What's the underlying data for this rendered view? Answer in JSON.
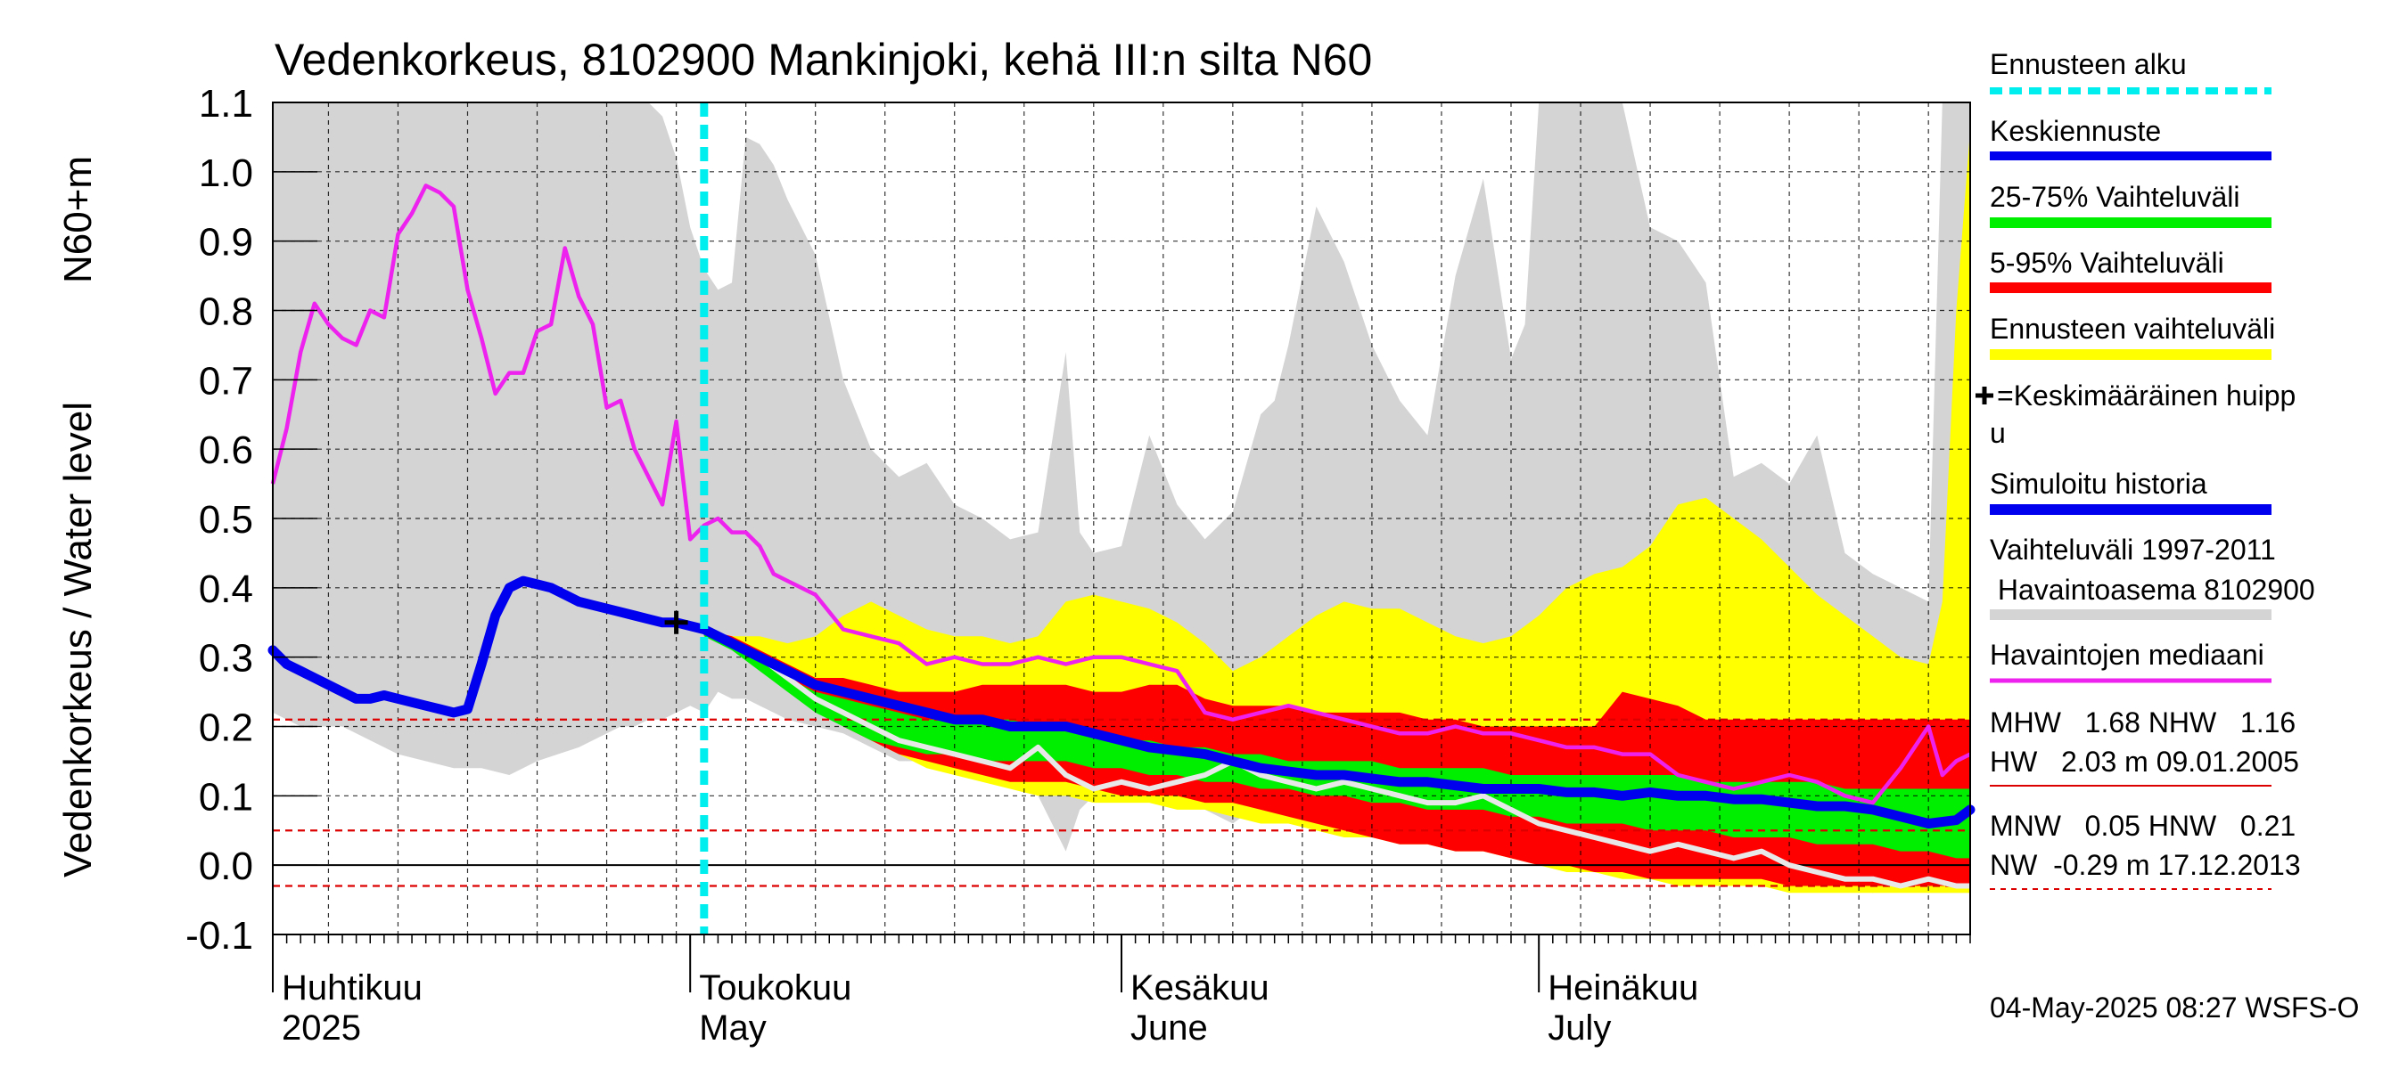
{
  "chart_data": {
    "type": "area",
    "title": "Vedenkorkeus, 8102900 Mankinjoki, kehä III:n silta N60",
    "ylabel_top": "N60+m",
    "ylabel": "Vedenkorkeus / Water level",
    "ylim": [
      -0.1,
      1.1
    ],
    "y_ticks": [
      "1.1",
      "1.0",
      "0.9",
      "0.8",
      "0.7",
      "0.6",
      "0.5",
      "0.4",
      "0.3",
      "0.2",
      "0.1",
      "0.0",
      "-0.1"
    ],
    "y_tick_values": [
      1.1,
      1.0,
      0.9,
      0.8,
      0.7,
      0.6,
      0.5,
      0.4,
      0.3,
      0.2,
      0.1,
      0.0,
      -0.1
    ],
    "x_range_days": [
      1,
      123
    ],
    "months": [
      {
        "fi": "Huhtikuu",
        "en": "2025",
        "day": 1
      },
      {
        "fi": "Toukokuu",
        "en": "May",
        "day": 31
      },
      {
        "fi": "Kesäkuu",
        "en": "June",
        "day": 62
      },
      {
        "fi": "Heinäkuu",
        "en": "July",
        "day": 92
      }
    ],
    "forecast_start_day": 32,
    "mean_peak": {
      "day": 30,
      "value": 0.35
    },
    "ref_lines": [
      0.21,
      0.05,
      -0.03
    ],
    "grey_range": {
      "x": [
        1,
        3,
        6,
        10,
        14,
        16,
        18,
        20,
        23,
        26,
        27,
        28,
        29,
        30,
        31,
        32,
        33,
        34,
        35,
        36,
        37,
        38,
        40,
        42,
        44,
        46,
        48,
        50,
        52,
        54,
        56,
        58,
        59,
        60,
        62,
        64,
        66,
        68,
        70,
        72,
        73,
        74,
        76,
        78,
        80,
        82,
        84,
        86,
        88,
        90,
        91,
        92,
        93,
        94,
        96,
        98,
        100,
        102,
        104,
        106,
        108,
        110,
        112,
        114,
        116,
        118,
        120,
        121,
        122,
        123
      ],
      "upper": [
        1.1,
        1.1,
        1.1,
        1.1,
        1.1,
        1.1,
        1.1,
        1.1,
        1.1,
        1.1,
        1.1,
        1.1,
        1.08,
        1.02,
        0.92,
        0.86,
        0.83,
        0.84,
        1.05,
        1.04,
        1.01,
        0.96,
        0.88,
        0.7,
        0.6,
        0.56,
        0.58,
        0.52,
        0.5,
        0.47,
        0.48,
        0.74,
        0.48,
        0.45,
        0.46,
        0.62,
        0.52,
        0.47,
        0.51,
        0.65,
        0.67,
        0.75,
        0.95,
        0.87,
        0.75,
        0.67,
        0.62,
        0.85,
        0.99,
        0.73,
        0.78,
        1.1,
        1.1,
        1.1,
        1.1,
        1.1,
        0.92,
        0.9,
        0.84,
        0.56,
        0.58,
        0.55,
        0.62,
        0.45,
        0.42,
        0.4,
        0.38,
        1.1,
        1.1,
        1.1
      ],
      "lower": [
        0.22,
        0.2,
        0.2,
        0.16,
        0.14,
        0.14,
        0.13,
        0.15,
        0.17,
        0.2,
        0.2,
        0.21,
        0.21,
        0.22,
        0.23,
        0.22,
        0.25,
        0.24,
        0.24,
        0.23,
        0.22,
        0.21,
        0.2,
        0.19,
        0.17,
        0.15,
        0.15,
        0.14,
        0.13,
        0.12,
        0.1,
        0.02,
        0.08,
        0.1,
        0.12,
        0.11,
        0.1,
        0.08,
        0.06,
        0.09,
        0.08,
        0.07,
        0.05,
        0.06,
        0.07,
        0.05,
        0.06,
        0.04,
        0.03,
        0.02,
        0.03,
        0.02,
        0.02,
        0.01,
        0.0,
        0.0,
        -0.01,
        -0.01,
        -0.02,
        -0.02,
        -0.02,
        -0.03,
        -0.03,
        -0.03,
        -0.04,
        -0.03,
        -0.04,
        -0.04,
        -0.04,
        -0.04
      ]
    },
    "forecast_range": {
      "x": [
        32,
        34,
        36,
        38,
        40,
        42,
        44,
        46,
        48,
        50,
        52,
        54,
        56,
        58,
        60,
        62,
        64,
        66,
        68,
        70,
        72,
        74,
        76,
        78,
        80,
        82,
        84,
        86,
        88,
        90,
        92,
        94,
        96,
        98,
        100,
        102,
        104,
        106,
        108,
        110,
        112,
        114,
        116,
        118,
        120,
        121,
        122,
        123
      ],
      "upper": [
        0.33,
        0.33,
        0.33,
        0.32,
        0.33,
        0.36,
        0.38,
        0.36,
        0.34,
        0.33,
        0.33,
        0.32,
        0.33,
        0.38,
        0.39,
        0.38,
        0.37,
        0.35,
        0.32,
        0.28,
        0.3,
        0.33,
        0.36,
        0.38,
        0.37,
        0.37,
        0.35,
        0.33,
        0.32,
        0.33,
        0.36,
        0.4,
        0.42,
        0.43,
        0.46,
        0.52,
        0.53,
        0.5,
        0.47,
        0.43,
        0.39,
        0.36,
        0.33,
        0.3,
        0.29,
        0.38,
        0.8,
        1.06
      ],
      "lower": [
        0.33,
        0.32,
        0.3,
        0.27,
        0.24,
        0.21,
        0.18,
        0.16,
        0.14,
        0.13,
        0.12,
        0.11,
        0.1,
        0.1,
        0.09,
        0.09,
        0.09,
        0.08,
        0.08,
        0.07,
        0.06,
        0.06,
        0.05,
        0.04,
        0.04,
        0.03,
        0.03,
        0.02,
        0.02,
        0.01,
        0.0,
        -0.01,
        -0.01,
        -0.02,
        -0.02,
        -0.03,
        -0.03,
        -0.03,
        -0.03,
        -0.04,
        -0.04,
        -0.04,
        -0.04,
        -0.04,
        -0.04,
        -0.04,
        -0.04,
        -0.04
      ]
    },
    "range_5_95": {
      "x": [
        32,
        34,
        36,
        38,
        40,
        42,
        44,
        46,
        48,
        50,
        52,
        54,
        56,
        58,
        60,
        62,
        64,
        66,
        68,
        70,
        72,
        74,
        76,
        78,
        80,
        82,
        84,
        86,
        88,
        90,
        92,
        94,
        96,
        98,
        100,
        102,
        104,
        106,
        108,
        110,
        112,
        114,
        116,
        118,
        120,
        122,
        123
      ],
      "upper": [
        0.34,
        0.33,
        0.31,
        0.29,
        0.27,
        0.27,
        0.26,
        0.25,
        0.25,
        0.25,
        0.26,
        0.26,
        0.26,
        0.26,
        0.25,
        0.25,
        0.26,
        0.26,
        0.24,
        0.23,
        0.23,
        0.23,
        0.22,
        0.22,
        0.22,
        0.22,
        0.21,
        0.21,
        0.2,
        0.2,
        0.2,
        0.2,
        0.2,
        0.25,
        0.24,
        0.23,
        0.21,
        0.21,
        0.21,
        0.21,
        0.21,
        0.21,
        0.21,
        0.21,
        0.21,
        0.21,
        0.21
      ],
      "lower": [
        0.33,
        0.32,
        0.29,
        0.26,
        0.23,
        0.2,
        0.18,
        0.16,
        0.15,
        0.14,
        0.13,
        0.12,
        0.12,
        0.12,
        0.11,
        0.1,
        0.1,
        0.1,
        0.09,
        0.09,
        0.08,
        0.07,
        0.06,
        0.05,
        0.04,
        0.03,
        0.03,
        0.02,
        0.02,
        0.01,
        0.0,
        0.0,
        -0.01,
        -0.01,
        -0.02,
        -0.02,
        -0.02,
        -0.02,
        -0.02,
        -0.03,
        -0.03,
        -0.03,
        -0.03,
        -0.03,
        -0.03,
        -0.03,
        -0.03
      ]
    },
    "range_25_75": {
      "x": [
        32,
        34,
        36,
        38,
        40,
        42,
        44,
        46,
        48,
        50,
        52,
        54,
        56,
        58,
        60,
        62,
        64,
        66,
        68,
        70,
        72,
        74,
        76,
        78,
        80,
        82,
        84,
        86,
        88,
        90,
        92,
        94,
        96,
        98,
        100,
        102,
        104,
        106,
        108,
        110,
        112,
        114,
        116,
        118,
        120,
        122,
        123
      ],
      "upper": [
        0.34,
        0.32,
        0.3,
        0.27,
        0.25,
        0.24,
        0.23,
        0.22,
        0.21,
        0.21,
        0.21,
        0.21,
        0.2,
        0.2,
        0.19,
        0.18,
        0.18,
        0.17,
        0.17,
        0.16,
        0.16,
        0.15,
        0.15,
        0.15,
        0.15,
        0.14,
        0.14,
        0.14,
        0.14,
        0.13,
        0.13,
        0.13,
        0.13,
        0.13,
        0.13,
        0.13,
        0.12,
        0.12,
        0.12,
        0.12,
        0.12,
        0.11,
        0.11,
        0.11,
        0.11,
        0.11,
        0.11
      ],
      "lower": [
        0.33,
        0.31,
        0.28,
        0.25,
        0.22,
        0.2,
        0.18,
        0.17,
        0.16,
        0.16,
        0.15,
        0.15,
        0.15,
        0.15,
        0.14,
        0.14,
        0.13,
        0.13,
        0.12,
        0.12,
        0.11,
        0.11,
        0.1,
        0.1,
        0.09,
        0.09,
        0.08,
        0.08,
        0.08,
        0.07,
        0.07,
        0.06,
        0.06,
        0.06,
        0.05,
        0.05,
        0.05,
        0.04,
        0.04,
        0.04,
        0.03,
        0.03,
        0.03,
        0.02,
        0.02,
        0.01,
        0.01
      ]
    },
    "simulated_history": {
      "x": [
        1,
        2,
        3,
        4,
        5,
        6,
        7,
        8,
        9,
        10,
        11,
        12,
        13,
        14,
        15,
        16,
        17,
        18,
        19,
        20,
        21,
        22,
        23,
        24,
        25,
        26,
        27,
        28,
        29,
        30
      ],
      "y": [
        0.31,
        0.29,
        0.28,
        0.27,
        0.26,
        0.25,
        0.24,
        0.24,
        0.245,
        0.24,
        0.235,
        0.23,
        0.225,
        0.22,
        0.225,
        0.29,
        0.36,
        0.4,
        0.41,
        0.405,
        0.4,
        0.39,
        0.38,
        0.375,
        0.37,
        0.365,
        0.36,
        0.355,
        0.35,
        0.35
      ]
    },
    "mean_forecast": {
      "x": [
        30,
        32,
        34,
        36,
        38,
        40,
        42,
        44,
        46,
        48,
        50,
        52,
        54,
        56,
        58,
        60,
        62,
        64,
        66,
        68,
        70,
        72,
        74,
        76,
        78,
        80,
        82,
        84,
        86,
        88,
        90,
        92,
        94,
        96,
        98,
        100,
        102,
        104,
        106,
        108,
        110,
        112,
        114,
        116,
        118,
        120,
        122,
        123
      ],
      "y": [
        0.35,
        0.34,
        0.32,
        0.3,
        0.28,
        0.26,
        0.25,
        0.24,
        0.23,
        0.22,
        0.21,
        0.21,
        0.2,
        0.2,
        0.2,
        0.19,
        0.18,
        0.17,
        0.165,
        0.16,
        0.15,
        0.14,
        0.135,
        0.13,
        0.13,
        0.125,
        0.12,
        0.12,
        0.115,
        0.11,
        0.11,
        0.11,
        0.105,
        0.105,
        0.1,
        0.105,
        0.1,
        0.1,
        0.095,
        0.095,
        0.09,
        0.085,
        0.085,
        0.08,
        0.07,
        0.06,
        0.065,
        0.08
      ]
    },
    "observed_median": {
      "x": [
        1,
        2,
        3,
        4,
        5,
        6,
        7,
        8,
        9,
        10,
        11,
        12,
        13,
        14,
        15,
        16,
        17,
        18,
        19,
        20,
        21,
        22,
        23,
        24,
        25,
        26,
        27,
        28,
        29,
        30,
        31,
        32,
        33,
        34,
        35,
        36,
        37,
        38,
        40,
        42,
        44,
        46,
        48,
        50,
        52,
        54,
        56,
        58,
        60,
        62,
        64,
        66,
        68,
        70,
        72,
        74,
        76,
        78,
        80,
        82,
        84,
        86,
        88,
        90,
        92,
        94,
        96,
        98,
        100,
        102,
        104,
        106,
        108,
        110,
        112,
        114,
        116,
        118,
        120,
        121,
        122,
        123
      ],
      "y": [
        0.55,
        0.63,
        0.74,
        0.81,
        0.78,
        0.76,
        0.75,
        0.8,
        0.79,
        0.91,
        0.94,
        0.98,
        0.97,
        0.95,
        0.83,
        0.76,
        0.68,
        0.71,
        0.71,
        0.77,
        0.78,
        0.89,
        0.82,
        0.78,
        0.66,
        0.67,
        0.6,
        0.56,
        0.52,
        0.64,
        0.47,
        0.49,
        0.5,
        0.48,
        0.48,
        0.46,
        0.42,
        0.41,
        0.39,
        0.34,
        0.33,
        0.32,
        0.29,
        0.3,
        0.29,
        0.29,
        0.3,
        0.29,
        0.3,
        0.3,
        0.29,
        0.28,
        0.22,
        0.21,
        0.22,
        0.23,
        0.22,
        0.21,
        0.2,
        0.19,
        0.19,
        0.2,
        0.19,
        0.19,
        0.18,
        0.17,
        0.17,
        0.16,
        0.16,
        0.13,
        0.12,
        0.11,
        0.12,
        0.13,
        0.12,
        0.1,
        0.09,
        0.14,
        0.2,
        0.13,
        0.15,
        0.16
      ]
    },
    "observed_light": {
      "x": [
        30,
        32,
        34,
        36,
        38,
        40,
        42,
        44,
        46,
        48,
        50,
        52,
        54,
        56,
        58,
        60,
        62,
        64,
        66,
        68,
        70,
        72,
        74,
        76,
        78,
        80,
        82,
        84,
        86,
        88,
        90,
        92,
        94,
        96,
        98,
        100,
        102,
        104,
        106,
        108,
        110,
        112,
        114,
        116,
        118,
        120,
        122,
        123
      ],
      "y": [
        0.35,
        0.34,
        0.32,
        0.3,
        0.27,
        0.24,
        0.22,
        0.2,
        0.18,
        0.17,
        0.16,
        0.15,
        0.14,
        0.17,
        0.13,
        0.11,
        0.12,
        0.11,
        0.12,
        0.13,
        0.15,
        0.13,
        0.12,
        0.11,
        0.12,
        0.11,
        0.1,
        0.09,
        0.09,
        0.1,
        0.08,
        0.06,
        0.05,
        0.04,
        0.03,
        0.02,
        0.03,
        0.02,
        0.01,
        0.02,
        0.0,
        -0.01,
        -0.02,
        -0.02,
        -0.03,
        -0.02,
        -0.03,
        -0.03
      ]
    }
  },
  "legend": {
    "forecast_start": "Ennusteen alku",
    "mean_forecast": "Keskiennuste",
    "range_25_75": "25-75% Vaihteluväli",
    "range_5_95": "5-95% Vaihteluväli",
    "forecast_range": "Ennusteen vaihteluväli",
    "peak_line1": "=Keskimääräinen huipp",
    "peak_line2": "u",
    "simulated": "Simuloitu historia",
    "grey_line1": "Vaihteluväli 1997-2011",
    "grey_line2": " Havaintoasema 8102900",
    "median": "Havaintojen mediaani"
  },
  "stats": {
    "line1": "MHW   1.68 NHW   1.16",
    "line2": "HW   2.03 m 09.01.2005",
    "line3": "MNW   0.05 HNW   0.21",
    "line4": "NW  -0.29 m 17.12.2013"
  },
  "footer": "04-May-2025 08:27 WSFS-O",
  "colors": {
    "grey_range": "#d4d4d4",
    "forecast_range": "#ffff00",
    "range_5_95": "#ff0000",
    "range_25_75": "#00ee00",
    "mean_forecast": "#0000ee",
    "observed_median": "#ee22ee",
    "observed_light": "#e8e8e8",
    "forecast_start": "#00eeee",
    "ref_line": "#dd0000"
  }
}
